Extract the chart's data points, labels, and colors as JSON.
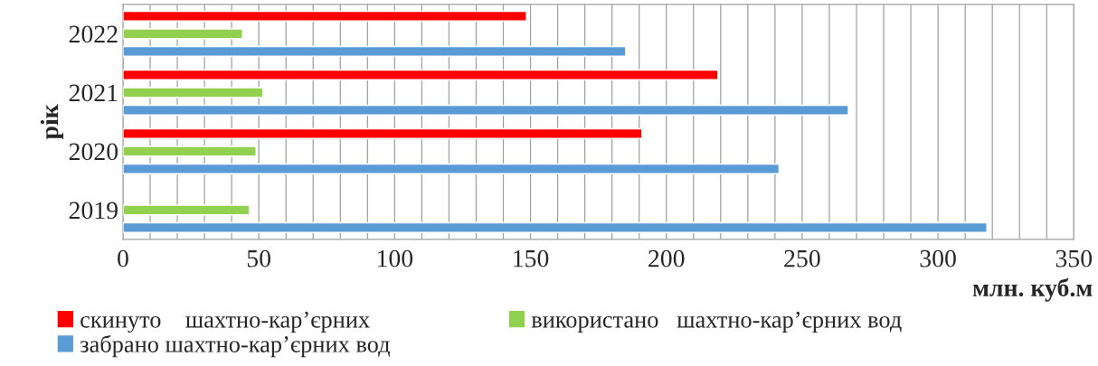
{
  "chart_data": {
    "type": "bar",
    "orientation": "horizontal",
    "categories": [
      "2022",
      "2021",
      "2020",
      "2019"
    ],
    "series": [
      {
        "name": "скинуто    шахтно-кар’єрних",
        "color": "#ff0000",
        "values": [
          148.5,
          219,
          191,
          null
        ]
      },
      {
        "name": "використано   шахтно-кар’єрних вод",
        "color": "#92d050",
        "values": [
          44,
          51.5,
          49,
          46.5
        ]
      },
      {
        "name": "забрано шахтно-кар’єрних вод",
        "color": "#5b9bd5",
        "values": [
          185,
          267,
          241.5,
          318
        ]
      }
    ],
    "xlim": [
      0,
      350
    ],
    "xticks": [
      0,
      {
        "value": 10,
        "label": null
      },
      {
        "value": 20,
        "label": null
      },
      {
        "value": 30,
        "label": null
      },
      {
        "value": 40,
        "label": null
      },
      50,
      {
        "value": 60,
        "label": null
      },
      {
        "value": 70,
        "label": null
      },
      {
        "value": 80,
        "label": null
      },
      {
        "value": 90,
        "label": null
      },
      100,
      {
        "value": 110,
        "label": null
      },
      {
        "value": 120,
        "label": null
      },
      {
        "value": 130,
        "label": null
      },
      {
        "value": 140,
        "label": null
      },
      150,
      {
        "value": 160,
        "label": null
      },
      {
        "value": 170,
        "label": null
      },
      {
        "value": 180,
        "label": null
      },
      {
        "value": 190,
        "label": null
      },
      200,
      {
        "value": 210,
        "label": null
      },
      {
        "value": 220,
        "label": null
      },
      {
        "value": 230,
        "label": null
      },
      {
        "value": 240,
        "label": null
      },
      250,
      {
        "value": 260,
        "label": null
      },
      {
        "value": 270,
        "label": null
      },
      {
        "value": 280,
        "label": null
      },
      {
        "value": 290,
        "label": null
      },
      300,
      {
        "value": 310,
        "label": null
      },
      {
        "value": 320,
        "label": null
      },
      {
        "value": 330,
        "label": null
      },
      {
        "value": 340,
        "label": null
      },
      350
    ],
    "xlabel": "млн. куб.м",
    "ylabel": "рік",
    "grid": "x",
    "legend": "bottom"
  }
}
